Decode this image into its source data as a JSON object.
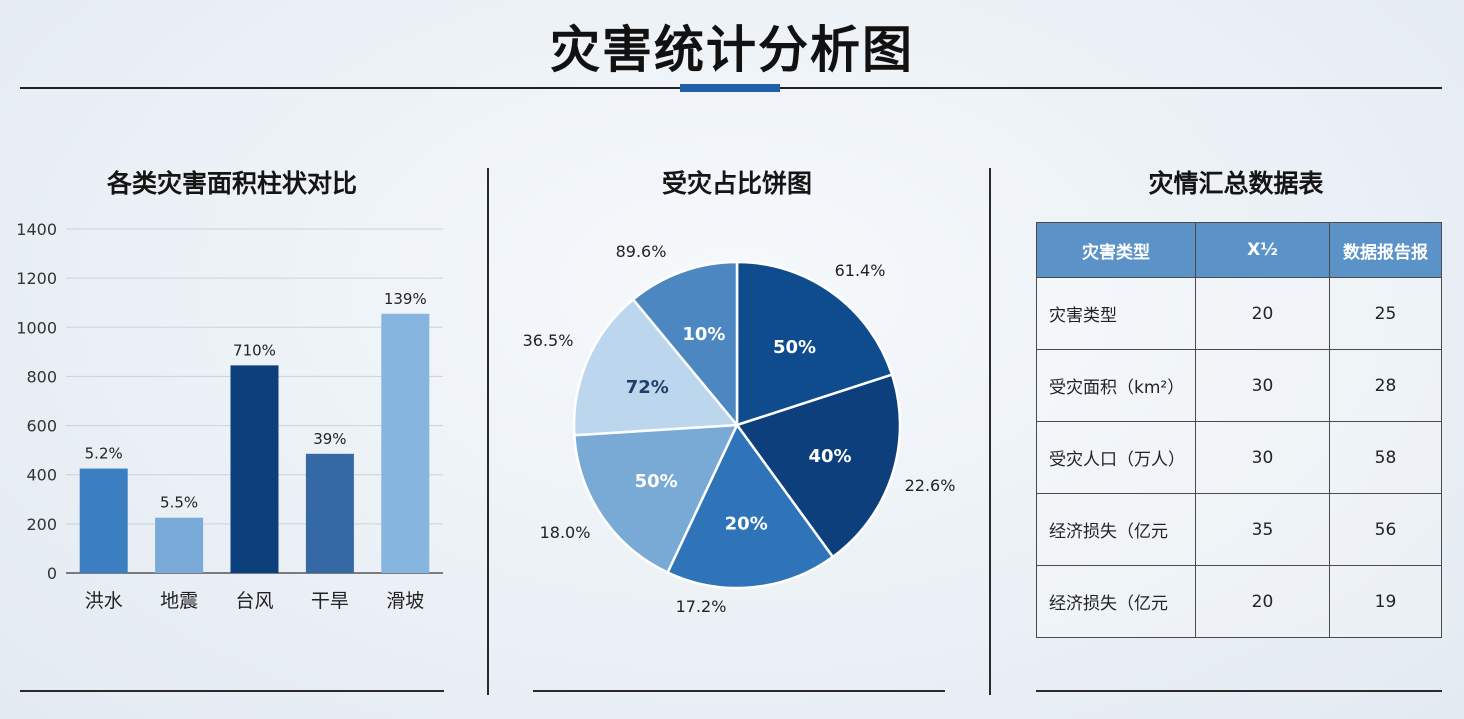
{
  "page_title": "灾害统计分析图",
  "colors": {
    "accent": "#1f5ea8",
    "table_header": "#5b93c9"
  },
  "chart_data": [
    {
      "type": "bar",
      "title": "各类灾害面积柱状对比",
      "categories": [
        "洪水",
        "地震",
        "台风",
        "干旱",
        "滑坡"
      ],
      "values": [
        425,
        225,
        845,
        485,
        1055
      ],
      "data_labels": [
        "5.2%",
        "5.5%",
        "710%",
        "39%",
        "139%"
      ],
      "colors": [
        "#3b7fc2",
        "#7aaad7",
        "#0e3f7d",
        "#3469a6",
        "#86b5df"
      ],
      "ylim": [
        0,
        1400
      ],
      "yticks": [
        0,
        200,
        400,
        600,
        800,
        1000,
        1200,
        1400
      ],
      "grid": true
    },
    {
      "type": "pie",
      "title": "受灾占比饼图",
      "slices": [
        {
          "value": 20,
          "inner_label": "50%",
          "outer_label": "61.4%",
          "color": "#0f4c8d"
        },
        {
          "value": 20,
          "inner_label": "40%",
          "outer_label": "22.6%",
          "color": "#0e3f7d"
        },
        {
          "value": 17,
          "inner_label": "20%",
          "outer_label": "17.2%",
          "color": "#2f74b8"
        },
        {
          "value": 17,
          "inner_label": "50%",
          "outer_label": "18.0%",
          "color": "#79a9d5"
        },
        {
          "value": 15,
          "inner_label": "72%",
          "outer_label": "36.5%",
          "color": "#bcd6ee"
        },
        {
          "value": 11,
          "inner_label": "10%",
          "outer_label": "89.6%",
          "color": "#4c87c2"
        }
      ]
    },
    {
      "type": "table",
      "title": "灾情汇总数据表",
      "columns": [
        "灾害类型",
        "X½",
        "数据报告报"
      ],
      "rows": [
        [
          "灾害类型",
          "20",
          "25"
        ],
        [
          "受灾面积（km²）",
          "30",
          "28"
        ],
        [
          "受灾人口（万人）",
          "30",
          "58"
        ],
        [
          "经济损失（亿元",
          "35",
          "56"
        ],
        [
          "经济损失（亿元",
          "20",
          "19"
        ]
      ]
    }
  ]
}
